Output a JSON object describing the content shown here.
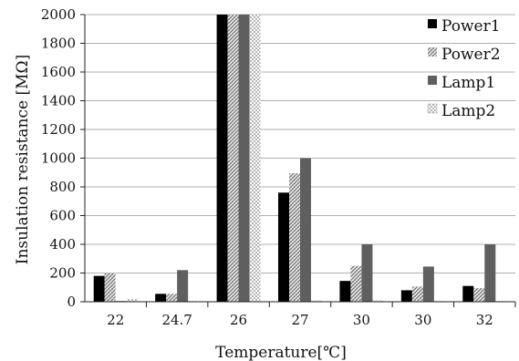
{
  "chart_data": {
    "type": "bar",
    "categories": [
      "22",
      "24.7",
      "26",
      "27",
      "30",
      "30",
      "32"
    ],
    "series": [
      {
        "name": "Power1",
        "values": [
          180,
          55,
          2000,
          760,
          145,
          80,
          110
        ]
      },
      {
        "name": "Power2",
        "values": [
          200,
          55,
          2000,
          895,
          250,
          105,
          95
        ]
      },
      {
        "name": "Lamp1",
        "values": [
          5,
          220,
          2000,
          1000,
          400,
          245,
          400
        ]
      },
      {
        "name": "Lamp2",
        "values": [
          20,
          5,
          2000,
          10,
          10,
          5,
          5
        ]
      }
    ],
    "title": "",
    "xlabel": "Temperature[℃]",
    "ylabel": "Insulation resistance [MΩ]",
    "ylim": [
      0,
      2000
    ],
    "yticks": [
      "0",
      "200",
      "400",
      "600",
      "800",
      "1000",
      "1200",
      "1400",
      "1600",
      "1800",
      "2000"
    ],
    "grid": true,
    "legend_position": "top-right",
    "colors": {
      "Power1": "#000000",
      "Power2": "#9a9a9a",
      "Lamp1": "#5f5f5f",
      "Lamp2": "#c8c8c8"
    }
  }
}
